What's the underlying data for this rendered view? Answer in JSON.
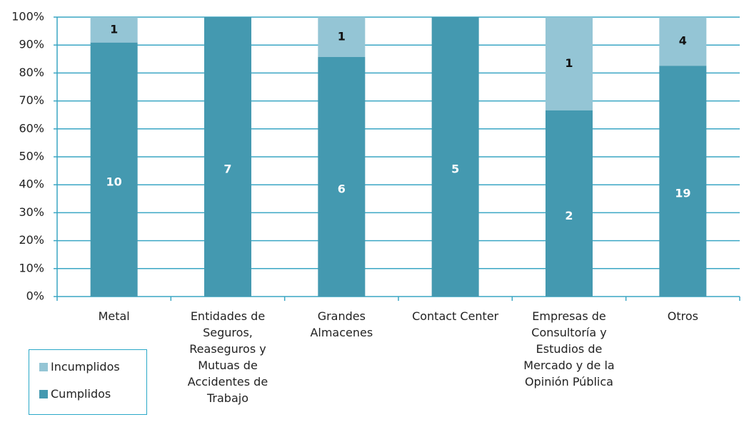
{
  "chart_data": {
    "type": "bar",
    "stacking": "percent",
    "categories": [
      "Metal",
      "Entidades de Seguros, Reaseguros y Mutuas de Accidentes de Trabajo",
      "Grandes Almacenes",
      "Contact Center",
      "Empresas de Consultoría y Estudios de Mercado y de la Opinión Pública",
      "Otros"
    ],
    "series": [
      {
        "name": "Cumplidos",
        "color": "#4499b0",
        "values": [
          10,
          7,
          6,
          5,
          2,
          19
        ]
      },
      {
        "name": "Incumplidos",
        "color": "#94c5d5",
        "values": [
          1,
          0,
          1,
          0,
          1,
          4
        ]
      }
    ],
    "ylim": [
      0,
      100
    ],
    "yticks": [
      {
        "value": 0,
        "label": "0%"
      },
      {
        "value": 10,
        "label": "10%"
      },
      {
        "value": 20,
        "label": "20%"
      },
      {
        "value": 30,
        "label": "30%"
      },
      {
        "value": 40,
        "label": "40%"
      },
      {
        "value": 50,
        "label": "50%"
      },
      {
        "value": 60,
        "label": "60%"
      },
      {
        "value": 70,
        "label": "70%"
      },
      {
        "value": 80,
        "label": "80%"
      },
      {
        "value": 90,
        "label": "90%"
      },
      {
        "value": 100,
        "label": "100%"
      }
    ],
    "grid": true,
    "legend": "bottom-left"
  }
}
